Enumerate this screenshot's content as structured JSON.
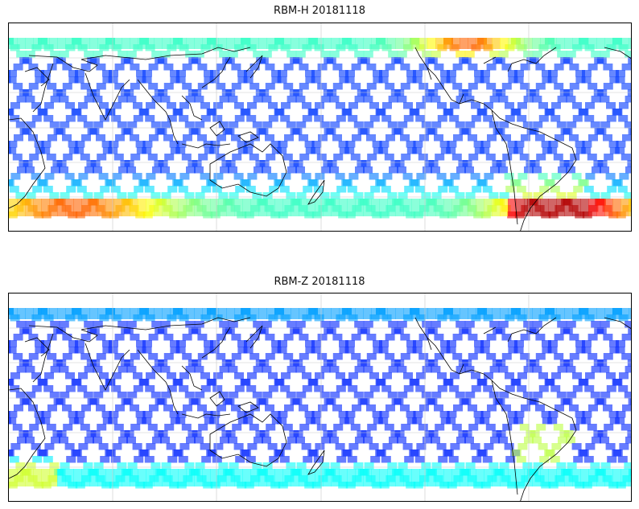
{
  "figure": {
    "panels": [
      {
        "title": "RBM-H 20181118",
        "id": "rbm-h"
      },
      {
        "title": "RBM-Z 20181118",
        "id": "rbm-z"
      }
    ]
  },
  "style": {
    "colormap": "jet",
    "swath_alpha": 0.6,
    "coastline_color": "#000000",
    "grid_color": "#c8c8c8"
  },
  "map": {
    "projection": "plate-carree",
    "central_longitude": 180,
    "lon_range": [
      30,
      390
    ],
    "lat_range": [
      -90,
      90
    ],
    "data_lat_range": [
      -60,
      60
    ],
    "gridlines": true
  }
}
